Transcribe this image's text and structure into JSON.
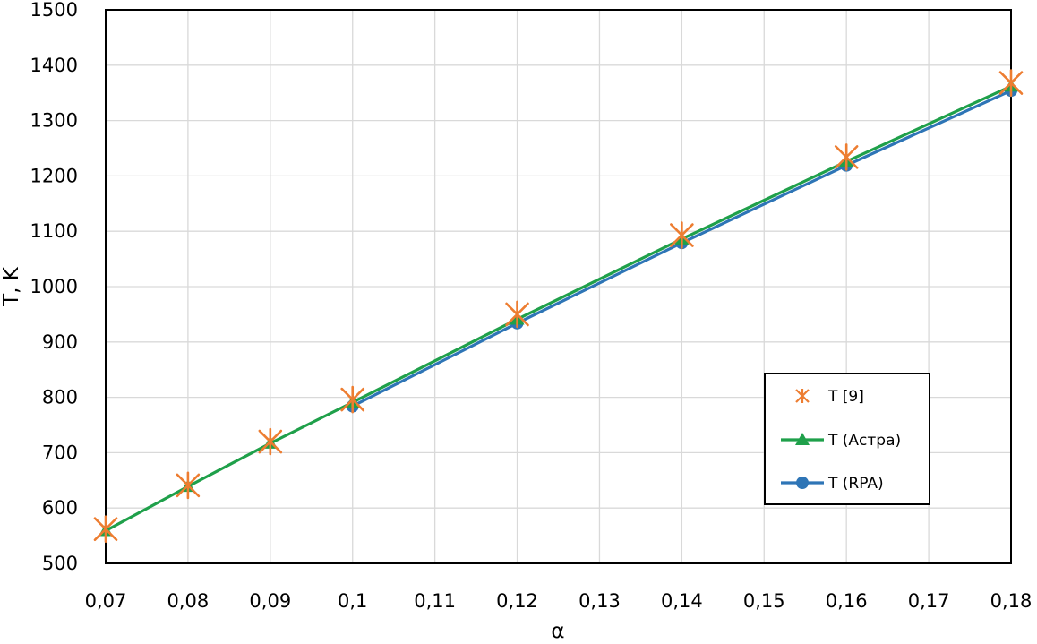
{
  "chart_data": {
    "type": "line",
    "xlabel": "α",
    "ylabel": "T, K",
    "xlim": [
      0.07,
      0.18
    ],
    "ylim": [
      500,
      1500
    ],
    "x_ticks": [
      0.07,
      0.08,
      0.09,
      0.1,
      0.11,
      0.12,
      0.13,
      0.14,
      0.15,
      0.16,
      0.17,
      0.18
    ],
    "x_tick_labels": [
      "0,07",
      "0,08",
      "0,09",
      "0,1",
      "0,11",
      "0,12",
      "0,13",
      "0,14",
      "0,15",
      "0,16",
      "0,17",
      "0,18"
    ],
    "y_ticks": [
      500,
      600,
      700,
      800,
      900,
      1000,
      1100,
      1200,
      1300,
      1400,
      1500
    ],
    "y_tick_labels": [
      "500",
      "600",
      "700",
      "800",
      "900",
      "1000",
      "1100",
      "1200",
      "1300",
      "1400",
      "1500"
    ],
    "grid": true,
    "legend_position": "right",
    "series": [
      {
        "name": "T [9]",
        "style": "markers",
        "marker": "asterisk",
        "color": "#ED7D31",
        "x": [
          0.07,
          0.08,
          0.09,
          0.1,
          0.12,
          0.14,
          0.16,
          0.18
        ],
        "y": [
          562,
          641,
          720,
          796,
          950,
          1093,
          1234,
          1368
        ]
      },
      {
        "name": "T (Астра)",
        "style": "line+markers",
        "marker": "triangle",
        "color": "#1FA04A",
        "x": [
          0.07,
          0.08,
          0.09,
          0.1,
          0.12,
          0.14,
          0.16,
          0.18
        ],
        "y": [
          559,
          639,
          717,
          791,
          941,
          1086,
          1226,
          1362
        ]
      },
      {
        "name": "T (RPA)",
        "style": "line+markers",
        "marker": "circle",
        "color": "#2E75B6",
        "x": [
          0.1,
          0.12,
          0.14,
          0.16,
          0.18
        ],
        "y": [
          784,
          934,
          1079,
          1219,
          1354
        ]
      }
    ]
  }
}
